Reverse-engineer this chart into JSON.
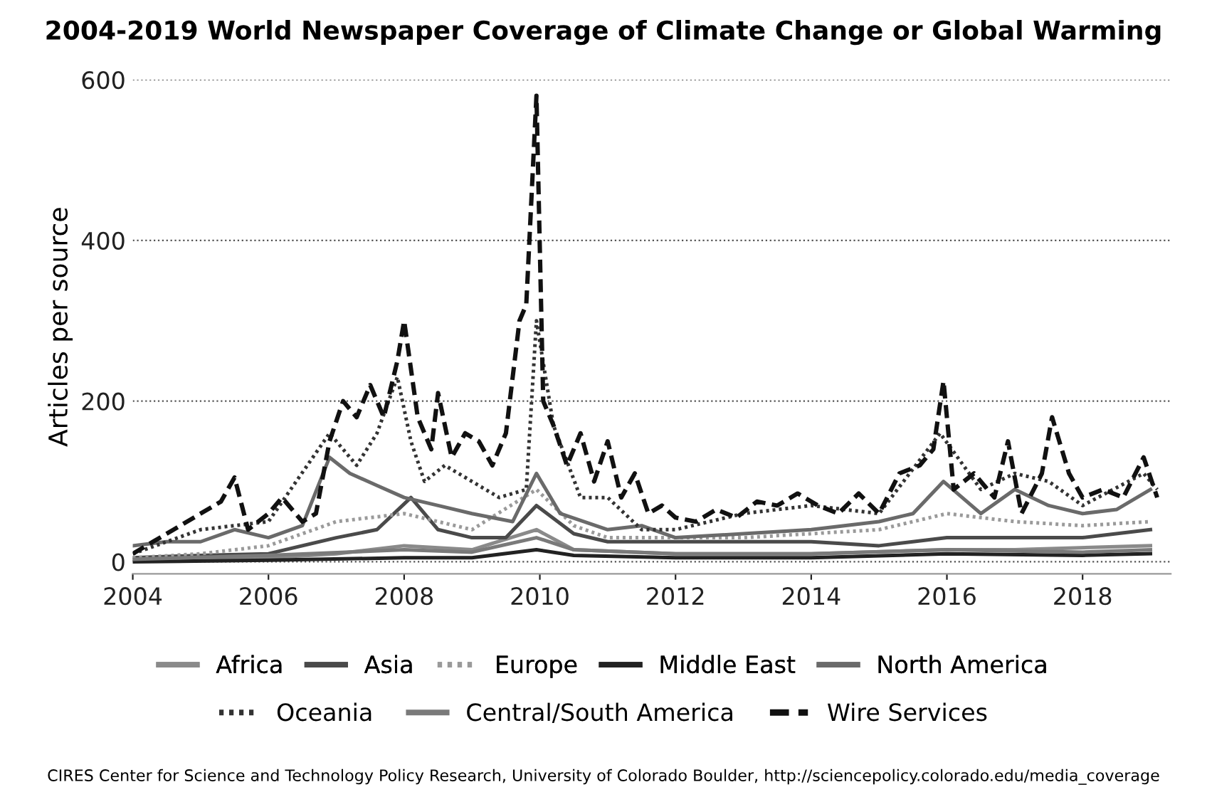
{
  "chart_data": {
    "type": "line",
    "title": "2004-2019 World Newspaper Coverage of Climate Change or Global Warming",
    "ylabel": "Articles per source",
    "xlim": [
      2004,
      2019.3
    ],
    "xticks": [
      2004,
      2006,
      2008,
      2010,
      2012,
      2014,
      2016,
      2018
    ],
    "ylim": [
      -15,
      600
    ],
    "yticks": [
      0,
      200,
      400,
      600
    ],
    "grid": "y",
    "legend": "bottom",
    "annotations": [
      "CIRES Center for Science and Technology Policy Research, University of Colorado Boulder, http://sciencepolicy.colorado.edu/media_coverage"
    ],
    "series": [
      {
        "name": "Africa",
        "color": "#8a8a8a",
        "line_style": "solid",
        "x": [
          2004,
          2006,
          2007,
          2008,
          2009,
          2009.95,
          2010.5,
          2012,
          2014,
          2016,
          2017,
          2019
        ],
        "values": [
          2,
          5,
          10,
          20,
          15,
          40,
          15,
          10,
          10,
          15,
          15,
          20
        ]
      },
      {
        "name": "Asia",
        "color": "#4a4a4a",
        "line_style": "solid",
        "x": [
          2004,
          2005,
          2006,
          2007,
          2007.6,
          2008.1,
          2008.5,
          2009,
          2009.5,
          2009.95,
          2010.5,
          2011,
          2012,
          2013,
          2014,
          2015,
          2016,
          2017,
          2018,
          2019
        ],
        "values": [
          5,
          8,
          10,
          30,
          40,
          80,
          40,
          30,
          30,
          70,
          35,
          25,
          25,
          25,
          25,
          20,
          30,
          30,
          30,
          40
        ]
      },
      {
        "name": "Europe",
        "color": "#9a9a9a",
        "line_style": "dotted",
        "x": [
          2004,
          2005,
          2006,
          2007,
          2008,
          2009,
          2009.95,
          2010.5,
          2011,
          2012,
          2013,
          2014,
          2015,
          2016,
          2017,
          2018,
          2019
        ],
        "values": [
          5,
          10,
          20,
          50,
          60,
          40,
          90,
          45,
          30,
          30,
          30,
          35,
          40,
          60,
          50,
          45,
          50
        ]
      },
      {
        "name": "Middle East",
        "color": "#222222",
        "line_style": "solid",
        "x": [
          2004,
          2006,
          2008,
          2009,
          2009.95,
          2010.5,
          2012,
          2014,
          2016,
          2018,
          2019
        ],
        "values": [
          0,
          2,
          5,
          5,
          15,
          8,
          5,
          5,
          10,
          8,
          10
        ]
      },
      {
        "name": "North America",
        "color": "#6a6a6a",
        "line_style": "solid",
        "x": [
          2004,
          2004.5,
          2005,
          2005.5,
          2006,
          2006.5,
          2006.9,
          2007.2,
          2007.6,
          2008,
          2008.5,
          2009,
          2009.6,
          2009.95,
          2010.3,
          2011,
          2011.5,
          2012,
          2013,
          2014,
          2015,
          2015.5,
          2015.95,
          2016.5,
          2017,
          2017.5,
          2018,
          2018.5,
          2019
        ],
        "values": [
          20,
          25,
          25,
          40,
          30,
          45,
          130,
          110,
          95,
          80,
          70,
          60,
          50,
          110,
          60,
          40,
          45,
          30,
          35,
          40,
          50,
          60,
          100,
          60,
          90,
          70,
          60,
          65,
          90
        ]
      },
      {
        "name": "Oceania",
        "color": "#333333",
        "line_style": "dotted",
        "x": [
          2004,
          2005,
          2006,
          2006.9,
          2007.3,
          2007.6,
          2007.9,
          2008.1,
          2008.3,
          2008.6,
          2009,
          2009.4,
          2009.8,
          2009.95,
          2010.2,
          2010.6,
          2011,
          2011.5,
          2012,
          2013,
          2014,
          2015,
          2015.9,
          2016.5,
          2017,
          2017.5,
          2018,
          2018.9,
          2019.1
        ],
        "values": [
          10,
          40,
          50,
          160,
          120,
          160,
          230,
          150,
          100,
          120,
          100,
          80,
          90,
          300,
          170,
          80,
          80,
          40,
          40,
          60,
          70,
          60,
          160,
          90,
          110,
          100,
          70,
          110,
          90
        ]
      },
      {
        "name": "Central/South America",
        "color": "#7a7a7a",
        "line_style": "solid",
        "x": [
          2004,
          2006,
          2008,
          2009,
          2009.95,
          2010.5,
          2012,
          2014,
          2016,
          2018,
          2019
        ],
        "values": [
          3,
          8,
          15,
          12,
          30,
          15,
          10,
          10,
          15,
          12,
          15
        ]
      },
      {
        "name": "Wire Services",
        "color": "#111111",
        "line_style": "dashed",
        "x": [
          2004,
          2004.3,
          2004.6,
          2005,
          2005.3,
          2005.5,
          2005.7,
          2006,
          2006.2,
          2006.5,
          2006.7,
          2006.9,
          2007.1,
          2007.3,
          2007.5,
          2007.7,
          2007.9,
          2008,
          2008.2,
          2008.4,
          2008.5,
          2008.7,
          2008.9,
          2009.1,
          2009.3,
          2009.5,
          2009.7,
          2009.8,
          2009.95,
          2010.05,
          2010.2,
          2010.4,
          2010.6,
          2010.8,
          2011,
          2011.2,
          2011.4,
          2011.6,
          2011.8,
          2012,
          2012.3,
          2012.6,
          2012.9,
          2013.2,
          2013.5,
          2013.8,
          2014.1,
          2014.4,
          2014.7,
          2015,
          2015.3,
          2015.6,
          2015.8,
          2015.95,
          2016.1,
          2016.4,
          2016.7,
          2016.9,
          2017.1,
          2017.4,
          2017.55,
          2017.8,
          2018,
          2018.3,
          2018.6,
          2018.9,
          2019.1
        ],
        "values": [
          10,
          25,
          40,
          60,
          75,
          105,
          40,
          60,
          80,
          50,
          60,
          150,
          200,
          180,
          220,
          180,
          250,
          300,
          180,
          140,
          210,
          130,
          160,
          150,
          120,
          160,
          300,
          320,
          580,
          200,
          170,
          120,
          160,
          100,
          150,
          80,
          110,
          60,
          70,
          55,
          50,
          65,
          55,
          75,
          70,
          85,
          70,
          60,
          85,
          60,
          110,
          120,
          140,
          225,
          90,
          110,
          80,
          150,
          60,
          110,
          180,
          110,
          80,
          90,
          80,
          130,
          80
        ]
      }
    ]
  }
}
